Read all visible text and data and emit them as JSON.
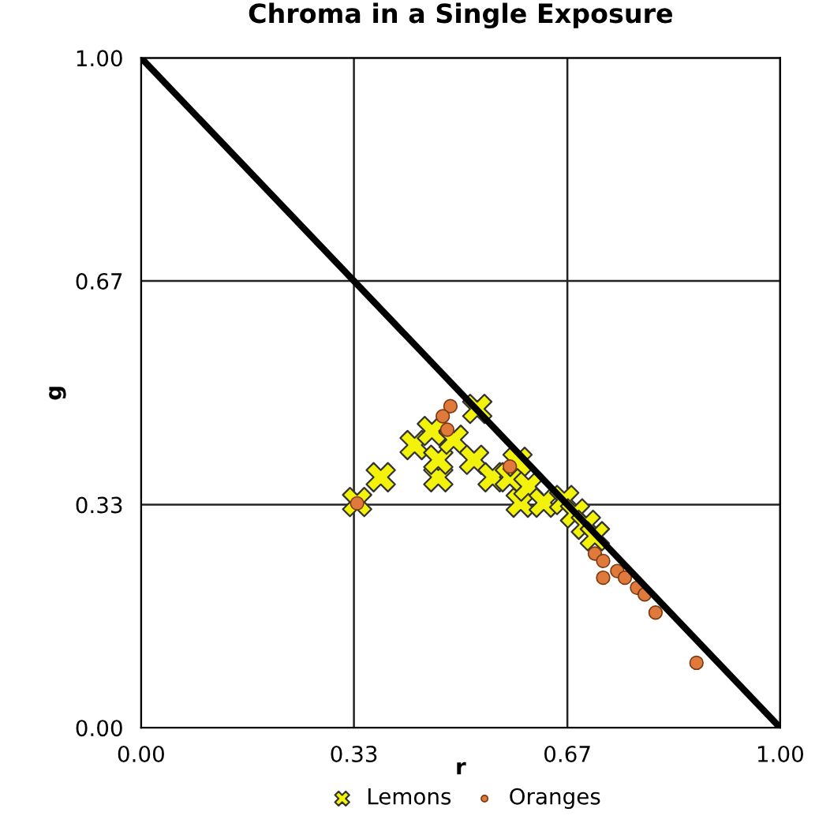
{
  "chart_data": {
    "type": "scatter",
    "title": "Chroma in a Single Exposure",
    "xlabel": "r",
    "ylabel": "g",
    "xlim": [
      0,
      1
    ],
    "ylim": [
      0,
      1
    ],
    "xticks": [
      {
        "value": 0,
        "label": "0.00"
      },
      {
        "value": 0.333,
        "label": "0.33"
      },
      {
        "value": 0.667,
        "label": "0.67"
      },
      {
        "value": 1,
        "label": "1.00"
      }
    ],
    "yticks": [
      {
        "value": 0,
        "label": "0.00"
      },
      {
        "value": 0.333,
        "label": "0.33"
      },
      {
        "value": 0.667,
        "label": "0.67"
      },
      {
        "value": 1,
        "label": "1.00"
      }
    ],
    "grid": true,
    "legend": "bottom",
    "series": [
      {
        "name": "Lemons",
        "marker": "cross",
        "color": "#f2f20a",
        "x": [
          0.338,
          0.375,
          0.428,
          0.455,
          0.465,
          0.465,
          0.489,
          0.526,
          0.521,
          0.55,
          0.577,
          0.589,
          0.594,
          0.606,
          0.63,
          0.662,
          0.679,
          0.696,
          0.71
        ],
        "values": [
          0.337,
          0.374,
          0.422,
          0.443,
          0.374,
          0.4,
          0.43,
          0.476,
          0.4,
          0.374,
          0.374,
          0.397,
          0.336,
          0.36,
          0.336,
          0.34,
          0.32,
          0.303,
          0.286
        ]
      },
      {
        "name": "Oranges",
        "marker": "circle",
        "color": "#e07a3c",
        "x": [
          0.338,
          0.484,
          0.472,
          0.479,
          0.577,
          0.71,
          0.723,
          0.723,
          0.745,
          0.757,
          0.776,
          0.788,
          0.805,
          0.869
        ],
        "values": [
          0.335,
          0.48,
          0.465,
          0.445,
          0.39,
          0.26,
          0.249,
          0.224,
          0.234,
          0.224,
          0.209,
          0.199,
          0.172,
          0.097
        ]
      },
      {
        "type": "line",
        "color": "#000000",
        "x": [
          0,
          1
        ],
        "values": [
          1,
          0
        ]
      }
    ]
  }
}
